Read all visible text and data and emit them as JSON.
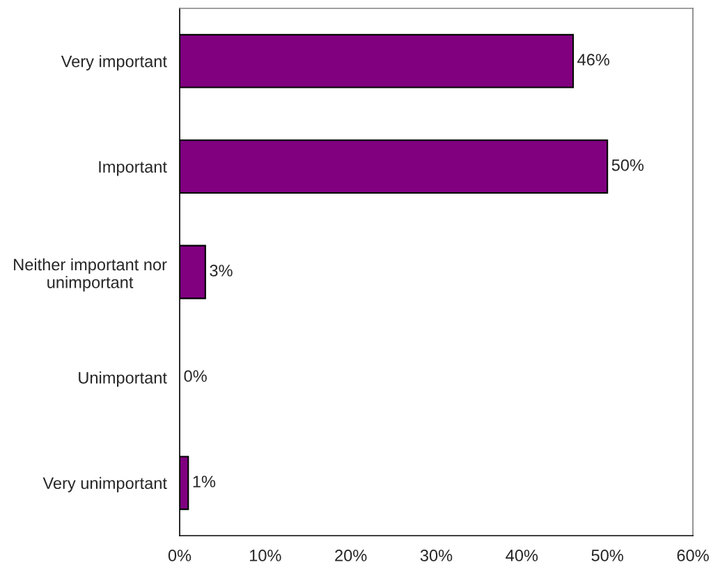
{
  "chart_data": {
    "type": "bar",
    "orientation": "horizontal",
    "categories": [
      "Very important",
      "Important",
      "Neither important nor\nunimportant",
      "Unimportant",
      "Very unimportant"
    ],
    "values": [
      46,
      50,
      3,
      0,
      1
    ],
    "value_labels": [
      "46%",
      "50%",
      "3%",
      "0%",
      "1%"
    ],
    "color": "#800080",
    "xlim": [
      0,
      60
    ],
    "xticks": [
      {
        "value": 0,
        "label": "0%"
      },
      {
        "value": 10,
        "label": "10%"
      },
      {
        "value": 20,
        "label": "20%"
      },
      {
        "value": 30,
        "label": "30%"
      },
      {
        "value": 40,
        "label": "40%"
      },
      {
        "value": 50,
        "label": "50%"
      },
      {
        "value": 60,
        "label": "60%"
      }
    ],
    "grid": false,
    "legend": false
  }
}
